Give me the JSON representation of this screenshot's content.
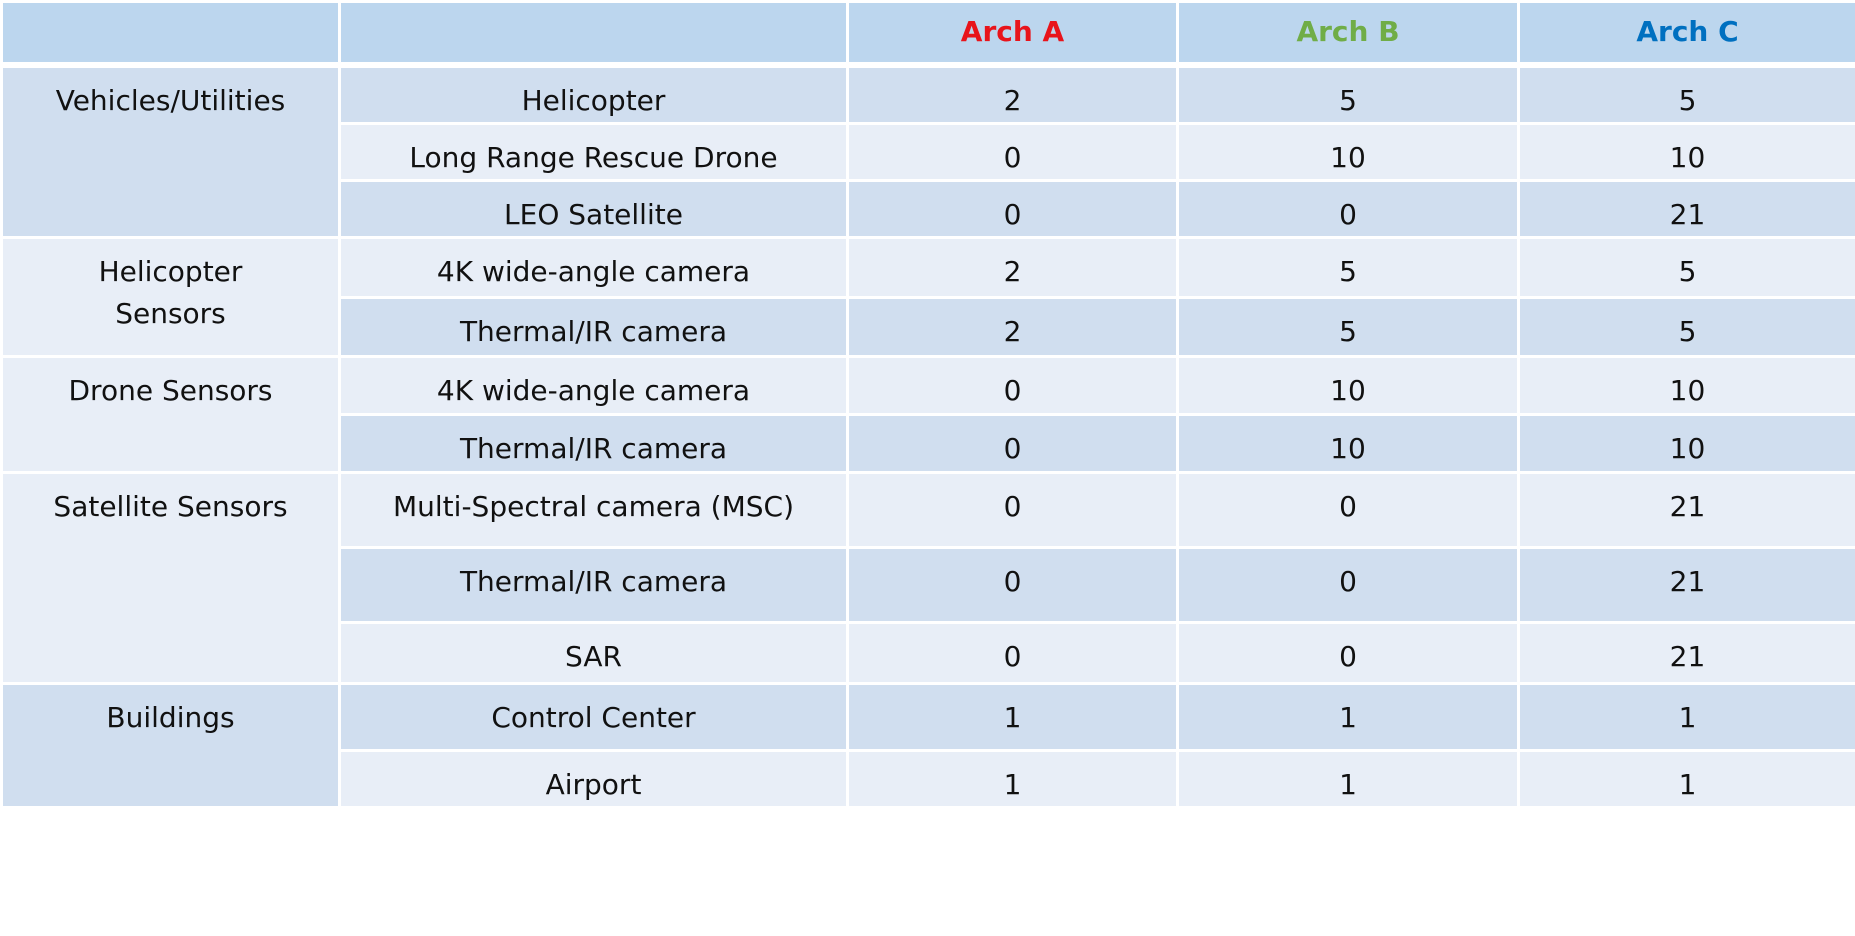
{
  "header": {
    "arch_a": "Arch A",
    "arch_b": "Arch B",
    "arch_c": "Arch C"
  },
  "colors": {
    "arch_a": "#e8141b",
    "arch_b": "#70ad47",
    "arch_c": "#0070c0",
    "header_bg": "#bcd6ee",
    "row_dark": "#d0deef",
    "row_light": "#e8eef7"
  },
  "groups": [
    {
      "label": "Vehicles/Utilities",
      "shade": "dark",
      "rows": [
        {
          "item": "Helicopter",
          "a": "2",
          "b": "5",
          "c": "5",
          "shade": "dark",
          "h": 66
        },
        {
          "item": "Long Range Rescue Drone",
          "a": "0",
          "b": "10",
          "c": "10",
          "shade": "light",
          "h": 66
        },
        {
          "item": "LEO Satellite",
          "a": "0",
          "b": "0",
          "c": "21",
          "shade": "dark",
          "h": 66
        }
      ]
    },
    {
      "label": "Helicopter Sensors",
      "shade": "light",
      "rows": [
        {
          "item": "4K wide-angle camera",
          "a": "2",
          "b": "5",
          "c": "5",
          "shade": "light",
          "h": 70
        },
        {
          "item": "Thermal/IR camera",
          "a": "2",
          "b": "5",
          "c": "5",
          "shade": "dark",
          "h": 69
        }
      ]
    },
    {
      "label": "Drone Sensors",
      "shade": "light",
      "rows": [
        {
          "item": "4K wide-angle camera",
          "a": "0",
          "b": "10",
          "c": "10",
          "shade": "light",
          "h": 69
        },
        {
          "item": "Thermal/IR camera",
          "a": "0",
          "b": "10",
          "c": "10",
          "shade": "dark",
          "h": 69
        }
      ]
    },
    {
      "label": "Satellite Sensors",
      "shade": "light",
      "rows": [
        {
          "item": "Multi-Spectral camera (MSC)",
          "a": "0",
          "b": "0",
          "c": "21",
          "shade": "light",
          "h": 90
        },
        {
          "item": "Thermal/IR camera",
          "a": "0",
          "b": "0",
          "c": "21",
          "shade": "dark",
          "h": 89
        },
        {
          "item": "SAR",
          "a": "0",
          "b": "0",
          "c": "21",
          "shade": "light",
          "h": 72
        }
      ]
    },
    {
      "label": "Buildings",
      "shade": "dark",
      "rows": [
        {
          "item": "Control Center",
          "a": "1",
          "b": "1",
          "c": "1",
          "shade": "dark",
          "h": 79
        },
        {
          "item": "Airport",
          "a": "1",
          "b": "1",
          "c": "1",
          "shade": "light",
          "h": 66
        }
      ]
    }
  ]
}
